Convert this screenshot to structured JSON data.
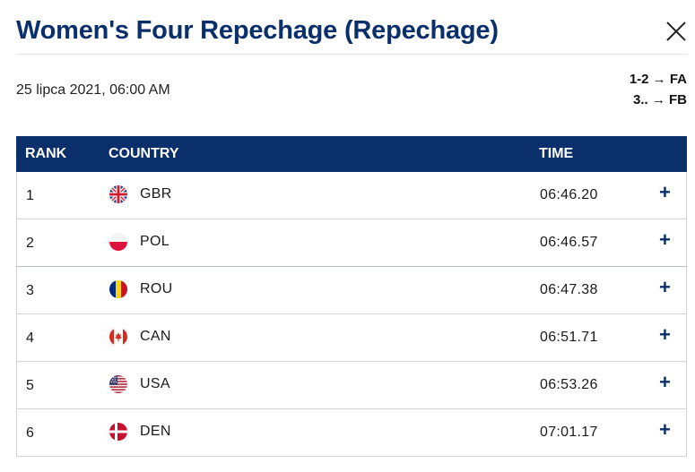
{
  "header": {
    "title": "Women's Four Repechage (Repechage)",
    "date": "25 lipca 2021, 06:00 AM"
  },
  "legend": [
    "1-2 → FA",
    "3.. → FB"
  ],
  "table": {
    "columns": {
      "rank": "RANK",
      "country": "COUNTRY",
      "time": "TIME"
    },
    "rows": [
      {
        "rank": "1",
        "country": "GBR",
        "time": "06:46.20",
        "flag": "gb-flag-icon"
      },
      {
        "rank": "2",
        "country": "POL",
        "time": "06:46.57",
        "flag": "pl-flag-icon"
      },
      {
        "rank": "3",
        "country": "ROU",
        "time": "06:47.38",
        "flag": "ro-flag-icon"
      },
      {
        "rank": "4",
        "country": "CAN",
        "time": "06:51.71",
        "flag": "ca-flag-icon"
      },
      {
        "rank": "5",
        "country": "USA",
        "time": "06:53.26",
        "flag": "us-flag-icon"
      },
      {
        "rank": "6",
        "country": "DEN",
        "time": "07:01.17",
        "flag": "dk-flag-icon"
      }
    ],
    "expand_symbol": "+"
  },
  "colors": {
    "accent": "#0a2f6b",
    "border": "#d4d4d4"
  }
}
